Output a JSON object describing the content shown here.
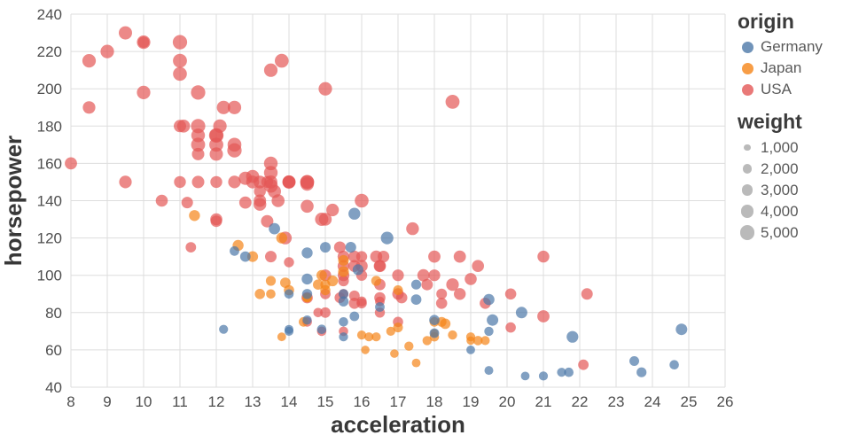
{
  "chart_data": {
    "type": "scatter",
    "title": "",
    "xlabel": "acceleration",
    "ylabel": "horsepower",
    "xlim": [
      8,
      26
    ],
    "ylim": [
      40,
      240
    ],
    "xticks": [
      8,
      9,
      10,
      11,
      12,
      13,
      14,
      15,
      16,
      17,
      18,
      19,
      20,
      21,
      22,
      23,
      24,
      25,
      26
    ],
    "yticks": [
      40,
      60,
      80,
      100,
      120,
      140,
      160,
      180,
      200,
      220,
      240
    ],
    "grid": true,
    "point_opacity": 0.7,
    "legend": {
      "origin": {
        "title": "origin",
        "entries": [
          {
            "label": "Germany",
            "color": "#4c78a8"
          },
          {
            "label": "Japan",
            "color": "#f58518"
          },
          {
            "label": "USA",
            "color": "#e45756"
          }
        ]
      },
      "weight": {
        "title": "weight",
        "entries": [
          {
            "label": "1,000",
            "value": 1000
          },
          {
            "label": "2,000",
            "value": 2000
          },
          {
            "label": "3,000",
            "value": 3000
          },
          {
            "label": "4,000",
            "value": 4000
          },
          {
            "label": "5,000",
            "value": 5000
          }
        ]
      }
    },
    "size_field": "weight",
    "point_format": [
      "acceleration",
      "horsepower",
      "weight"
    ],
    "series": [
      {
        "name": "USA",
        "color": "#e45756",
        "points": [
          [
            8,
            160,
            3609
          ],
          [
            8.5,
            215,
            4312
          ],
          [
            8.5,
            190,
            3850
          ],
          [
            9,
            220,
            4354
          ],
          [
            9.5,
            230,
            4278
          ],
          [
            10,
            225,
            4425
          ],
          [
            10,
            198,
            4341
          ],
          [
            10,
            225,
            3086
          ],
          [
            9.5,
            150,
            3761
          ],
          [
            10.5,
            140,
            3449
          ],
          [
            11,
            225,
            4951
          ],
          [
            11,
            215,
            4735
          ],
          [
            11,
            208,
            4633
          ],
          [
            11,
            180,
            3664
          ],
          [
            11.1,
            180,
            4080
          ],
          [
            11.5,
            175,
            4464
          ],
          [
            11,
            150,
            3436
          ],
          [
            11.5,
            165,
            3693
          ],
          [
            11.5,
            170,
            4668
          ],
          [
            11.5,
            150,
            3672
          ],
          [
            11.5,
            198,
            4952
          ],
          [
            11.5,
            180,
            4955
          ],
          [
            12,
            175,
            5140
          ],
          [
            12,
            170,
            4746
          ],
          [
            12.5,
            167,
            4906
          ],
          [
            12,
            150,
            3433
          ],
          [
            12,
            130,
            3504
          ],
          [
            12,
            165,
            4274
          ],
          [
            12,
            175,
            4385
          ],
          [
            12.1,
            180,
            4380
          ],
          [
            12.2,
            190,
            4325
          ],
          [
            12.5,
            190,
            4422
          ],
          [
            12.5,
            150,
            3777
          ],
          [
            12.5,
            170,
            4654
          ],
          [
            12.8,
            152,
            4215
          ],
          [
            13,
            153,
            4129
          ],
          [
            13,
            150,
            3988
          ],
          [
            13.5,
            150,
            4135
          ],
          [
            13.2,
            145,
            3425
          ],
          [
            13.4,
            150,
            3445
          ],
          [
            13.5,
            148,
            4657
          ],
          [
            13.5,
            155,
            4502
          ],
          [
            13.5,
            160,
            4456
          ],
          [
            13.7,
            140,
            4080
          ],
          [
            13.2,
            138,
            3955
          ],
          [
            13.4,
            129,
            3725
          ],
          [
            13.2,
            140,
            3735
          ],
          [
            12.8,
            139,
            3570
          ],
          [
            11.2,
            139,
            3205
          ],
          [
            13.9,
            120,
            3962
          ],
          [
            13.5,
            110,
            3221
          ],
          [
            12,
            129,
            3169
          ],
          [
            14,
            107,
            2472
          ],
          [
            13.8,
            215,
            4615
          ],
          [
            13.5,
            210,
            4382
          ],
          [
            15,
            200,
            4376
          ],
          [
            18.5,
            193,
            4732
          ],
          [
            14,
            150,
            4077
          ],
          [
            14,
            150,
            3755
          ],
          [
            14,
            150,
            4257
          ],
          [
            14.5,
            137,
            4042
          ],
          [
            14.5,
            150,
            4498
          ],
          [
            14.5,
            149,
            4335
          ],
          [
            14.9,
            130,
            4295
          ],
          [
            15.2,
            135,
            3830
          ],
          [
            15,
            130,
            3870
          ],
          [
            13.2,
            150,
            3940
          ],
          [
            13.6,
            145,
            4140
          ],
          [
            16,
            140,
            4638
          ],
          [
            14.5,
            150,
            4699
          ],
          [
            16.5,
            105,
            3121
          ],
          [
            16,
            105,
            3459
          ],
          [
            16,
            85,
            2587
          ],
          [
            15.5,
            97,
            2774
          ],
          [
            15.5,
            90,
            2264
          ],
          [
            15,
            100,
            3282
          ],
          [
            16.5,
            95,
            3102
          ],
          [
            17,
            75,
            2542
          ],
          [
            15.5,
            70,
            2120
          ],
          [
            18,
            100,
            3278
          ],
          [
            16,
            100,
            2901
          ],
          [
            17,
            100,
            3336
          ],
          [
            16.5,
            88,
            3021
          ],
          [
            15.5,
            100,
            3288
          ],
          [
            17.7,
            100,
            3630
          ],
          [
            16.6,
            110,
            3306
          ],
          [
            17,
            90,
            3211
          ],
          [
            18.7,
            110,
            3620
          ],
          [
            21,
            78,
            3574
          ],
          [
            17.8,
            95,
            3193
          ],
          [
            16,
            110,
            2945
          ],
          [
            18,
            110,
            3632
          ],
          [
            17.4,
            125,
            3900
          ],
          [
            19.2,
            105,
            3535
          ],
          [
            15.8,
            110,
            3415
          ],
          [
            15.5,
            110,
            3365
          ],
          [
            18.7,
            90,
            3381
          ],
          [
            15,
            80,
            2670
          ],
          [
            18.2,
            85,
            2990
          ],
          [
            15.8,
            85,
            2965
          ],
          [
            15.4,
            88,
            2720
          ],
          [
            20.1,
            90,
            3003
          ],
          [
            14.5,
            88,
            3139
          ],
          [
            15.4,
            115,
            3245
          ],
          [
            11.3,
            115,
            2595
          ],
          [
            14.9,
            70,
            2120
          ],
          [
            14.5,
            75,
            2230
          ],
          [
            16.5,
            86,
            2226
          ],
          [
            16,
            86,
            2395
          ],
          [
            15,
            90,
            2648
          ],
          [
            16.5,
            80,
            2451
          ],
          [
            19,
            98,
            3525
          ],
          [
            15.5,
            105,
            3439
          ],
          [
            15.8,
            105,
            3380
          ],
          [
            16.5,
            105,
            3613
          ],
          [
            18.5,
            95,
            3785
          ],
          [
            14.8,
            80,
            2155
          ],
          [
            18.2,
            90,
            2735
          ],
          [
            15.8,
            89,
            2755
          ],
          [
            16.4,
            110,
            3520
          ],
          [
            22.2,
            90,
            3210
          ],
          [
            21,
            110,
            3365
          ],
          [
            22.1,
            52,
            2595
          ],
          [
            20.1,
            72,
            2565
          ],
          [
            19.4,
            85,
            3035
          ],
          [
            17.1,
            88,
            3060
          ]
        ]
      },
      {
        "name": "Japan",
        "color": "#f58518",
        "points": [
          [
            15,
            95,
            2372
          ],
          [
            14.5,
            88,
            2130
          ],
          [
            14.5,
            88,
            2140
          ],
          [
            19,
            65,
            1773
          ],
          [
            18,
            69,
            1613
          ],
          [
            13.5,
            97,
            2330
          ],
          [
            17,
            92,
            2288
          ],
          [
            13.5,
            90,
            2124
          ],
          [
            17.5,
            53,
            1795
          ],
          [
            18,
            75,
            2171
          ],
          [
            19,
            67,
            1950
          ],
          [
            16.4,
            67,
            1985
          ],
          [
            15.5,
            108,
            2725
          ],
          [
            18.5,
            68,
            2045
          ],
          [
            16.8,
            70,
            1945
          ],
          [
            14.8,
            95,
            2515
          ],
          [
            15.2,
            97,
            2775
          ],
          [
            19.4,
            65,
            1975
          ],
          [
            19.2,
            65,
            2110
          ],
          [
            17.3,
            62,
            2050
          ],
          [
            16.1,
            60,
            1760
          ],
          [
            16.9,
            58,
            1755
          ],
          [
            14.4,
            75,
            2210
          ],
          [
            14.9,
            100,
            2615
          ],
          [
            11.4,
            132,
            2910
          ],
          [
            13.8,
            120,
            2930
          ],
          [
            17,
            72,
            2290
          ],
          [
            13.2,
            90,
            2556
          ],
          [
            18.3,
            74,
            2635
          ],
          [
            15,
            92,
            2434
          ],
          [
            18.2,
            75,
            2265
          ],
          [
            18,
            67,
            2145
          ],
          [
            12.6,
            116,
            2900
          ],
          [
            13.8,
            67,
            1850
          ],
          [
            16.2,
            67,
            1995
          ],
          [
            16,
            68,
            1985
          ],
          [
            13.9,
            96,
            2665
          ],
          [
            13,
            110,
            2770
          ],
          [
            16.4,
            97,
            2330
          ],
          [
            14,
            92,
            2572
          ],
          [
            15.5,
            102,
            2815
          ],
          [
            17.8,
            65,
            2019
          ]
        ]
      },
      {
        "name": "Germany",
        "color": "#4c78a8",
        "points": [
          [
            20.5,
            46,
            1835
          ],
          [
            17.5,
            87,
            2672
          ],
          [
            14.5,
            90,
            2430
          ],
          [
            17.5,
            95,
            2375
          ],
          [
            12.5,
            113,
            2234
          ],
          [
            14,
            90,
            2123
          ],
          [
            19.5,
            70,
            2074
          ],
          [
            14.5,
            76,
            2065
          ],
          [
            19,
            60,
            1834
          ],
          [
            23.5,
            54,
            2254
          ],
          [
            14.5,
            112,
            2933
          ],
          [
            18,
            76,
            2511
          ],
          [
            19.5,
            87,
            2979
          ],
          [
            18,
            69,
            2189
          ],
          [
            21,
            46,
            1950
          ],
          [
            15.5,
            90,
            2265
          ],
          [
            19.5,
            49,
            1867
          ],
          [
            15.5,
            75,
            2158
          ],
          [
            16.5,
            83,
            2219
          ],
          [
            15.5,
            67,
            1963
          ],
          [
            14,
            70,
            1937
          ],
          [
            14.5,
            98,
            2945
          ],
          [
            15,
            115,
            2694
          ],
          [
            15.5,
            86,
            2464
          ],
          [
            15.8,
            133,
            3410
          ],
          [
            13.6,
            125,
            3140
          ],
          [
            15.7,
            115,
            2795
          ],
          [
            12.8,
            110,
            2600
          ],
          [
            16.7,
            120,
            3820
          ],
          [
            24.8,
            71,
            3190
          ],
          [
            21.8,
            67,
            3250
          ],
          [
            21.5,
            48,
            1985
          ],
          [
            15.9,
            103,
            2830
          ],
          [
            19.6,
            76,
            3160
          ],
          [
            23.7,
            48,
            2335
          ],
          [
            21.7,
            48,
            2085
          ],
          [
            24.6,
            52,
            2130
          ],
          [
            15.8,
            78,
            2188
          ],
          [
            20.4,
            80,
            3230
          ],
          [
            14,
            71,
            1925
          ],
          [
            12.2,
            71,
            1990
          ],
          [
            14.9,
            71,
            2108
          ]
        ]
      }
    ]
  }
}
